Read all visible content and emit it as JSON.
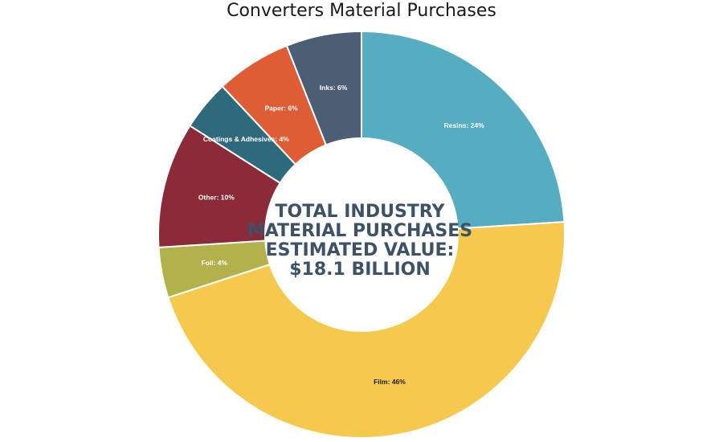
{
  "chart_data": {
    "type": "pie",
    "title": "Converters Material Purchases",
    "center_text": [
      "TOTAL INDUSTRY",
      "MATERIAL PURCHASES",
      "ESTIMATED VALUE:",
      "$18.1 BILLION"
    ],
    "slices": [
      {
        "category": "Resins",
        "value": 24,
        "label": "Resins: 24%",
        "color": "#56adc1",
        "label_color": "#ffffff"
      },
      {
        "category": "Film",
        "value": 46,
        "label": "Film: 46%",
        "color": "#f5c94e",
        "label_color": "#1a1a1a"
      },
      {
        "category": "Foil",
        "value": 4,
        "label": "Foil: 4%",
        "color": "#b2b14c",
        "label_color": "#ffffff"
      },
      {
        "category": "Other",
        "value": 10,
        "label": "Other: 10%",
        "color": "#8b2a39",
        "label_color": "#ffffff"
      },
      {
        "category": "Coatings & Adhesives",
        "value": 4,
        "label": "Coatings & Adhesives: 4%",
        "color": "#2f6a7c",
        "label_color": "#ffffff"
      },
      {
        "category": "Paper",
        "value": 6,
        "label": "Paper: 6%",
        "color": "#de5d35",
        "label_color": "#ffffff"
      },
      {
        "category": "Inks",
        "value": 6,
        "label": "Inks: 6%",
        "color": "#4c5e74",
        "label_color": "#ffffff"
      }
    ],
    "start_angle": "top",
    "direction": "clockwise",
    "legend": "none"
  }
}
